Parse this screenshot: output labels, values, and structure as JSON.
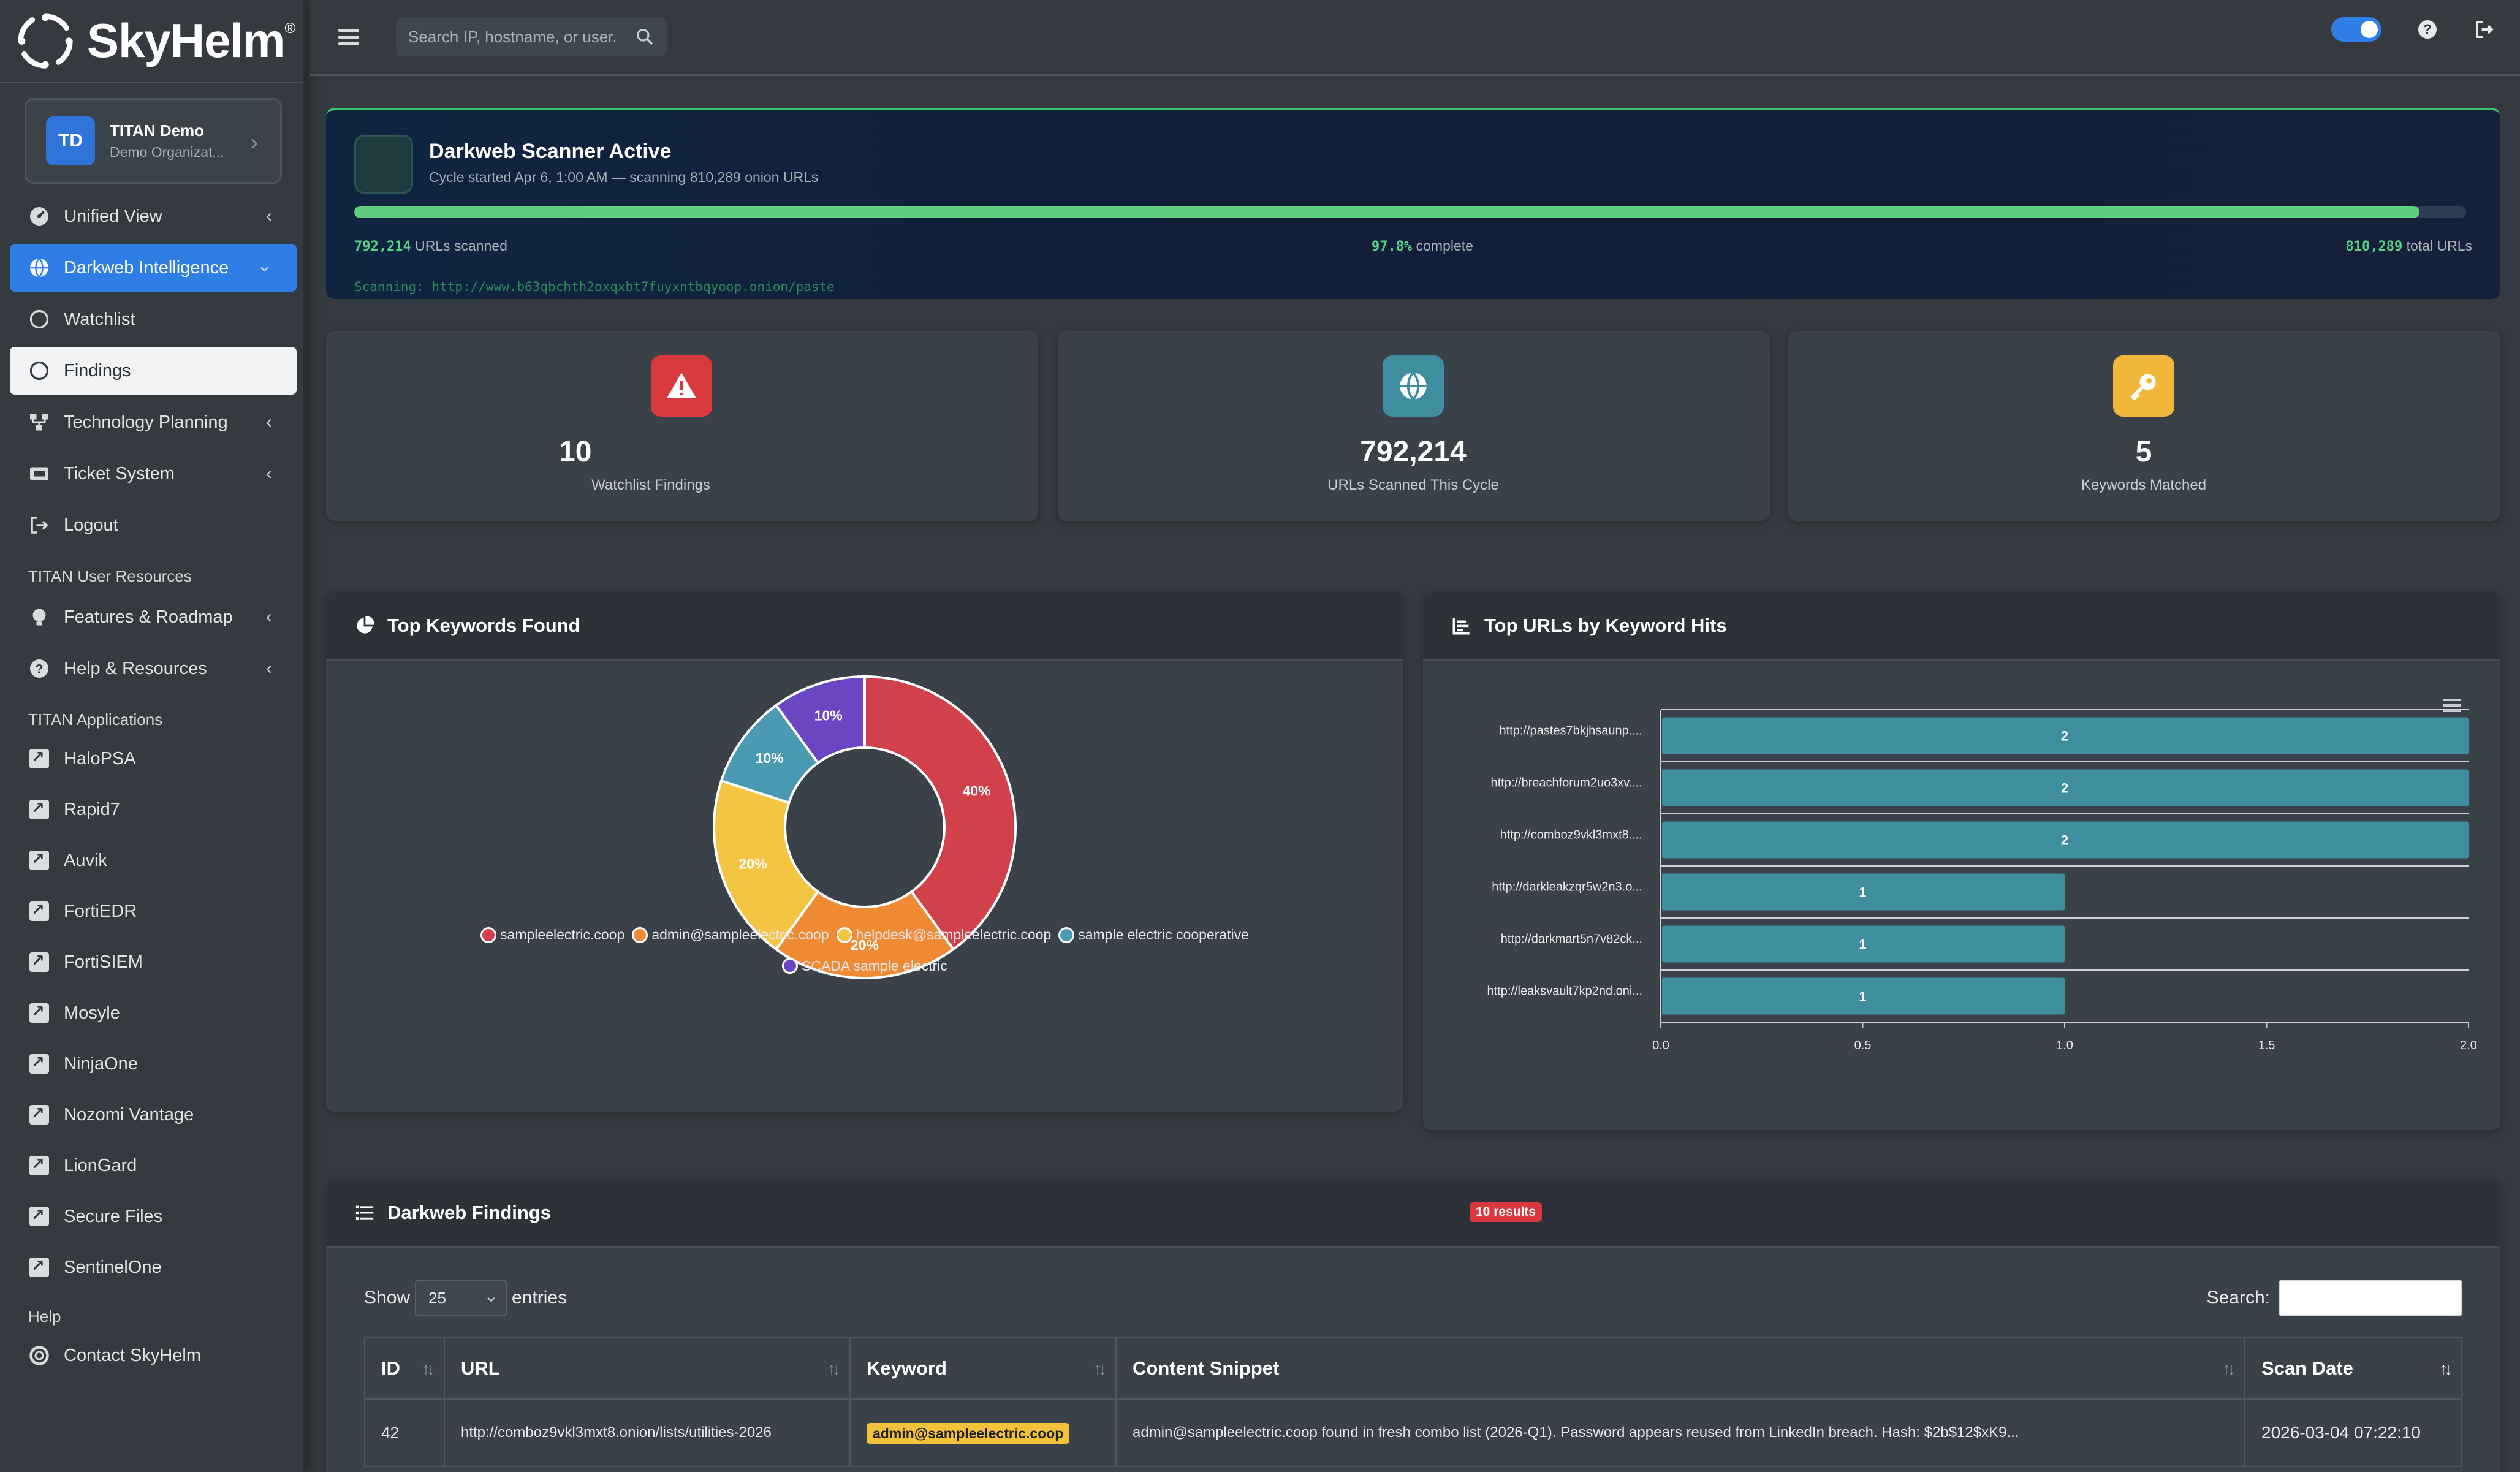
{
  "brand": {
    "name": "SkyHelm",
    "reg": "®"
  },
  "user": {
    "initials": "TD",
    "name": "TITAN Demo",
    "org": "Demo Organizat..."
  },
  "topbar": {
    "search_placeholder": "Search IP, hostname, or user."
  },
  "nav": {
    "items": [
      {
        "label": "Unified View",
        "icon": "dashboard-icon",
        "caret": true
      },
      {
        "label": "Darkweb Intelligence",
        "icon": "globe-icon",
        "caret": true,
        "state": "active"
      },
      {
        "label": "Watchlist",
        "icon": "circle-icon"
      },
      {
        "label": "Findings",
        "icon": "circle-icon",
        "state": "selected"
      },
      {
        "label": "Technology Planning",
        "icon": "hierarchy-icon",
        "caret": true
      },
      {
        "label": "Ticket System",
        "icon": "ticket-icon",
        "caret": true
      },
      {
        "label": "Logout",
        "icon": "logout-icon"
      }
    ],
    "resources_heading": "TITAN User Resources",
    "resources": [
      {
        "label": "Features & Roadmap",
        "icon": "lightbulb-icon"
      },
      {
        "label": "Help & Resources",
        "icon": "question-icon"
      }
    ],
    "apps_heading": "TITAN Applications",
    "apps": [
      "HaloPSA",
      "Rapid7",
      "Auvik",
      "FortiEDR",
      "FortiSIEM",
      "Mosyle",
      "NinjaOne",
      "Nozomi Vantage",
      "LionGard",
      "Secure Files",
      "SentinelOne"
    ],
    "help_heading": "Help",
    "help_items": [
      "Contact SkyHelm"
    ]
  },
  "scanner": {
    "title": "Darkweb Scanner Active",
    "subtitle": "Cycle started Apr 6, 1:00 AM — scanning 810,289 onion URLs",
    "progress": 0.978,
    "scanned_value": "792,214",
    "scanned_label": "URLs scanned",
    "percent_value": "97.8%",
    "percent_label": "complete",
    "total_value": "810,289",
    "total_label": "total URLs",
    "current_url": "Scanning: http://www.b63qbchth2oxqxbt7fuyxntbqyoop.onion/paste"
  },
  "stats": [
    {
      "value": "10",
      "label": "Watchlist Findings",
      "icon": "warning-icon",
      "color": "#d9383e"
    },
    {
      "value": "792,214",
      "label": "URLs Scanned This Cycle",
      "icon": "globe-icon",
      "color": "#3e8ea0"
    },
    {
      "value": "5",
      "label": "Keywords Matched",
      "icon": "key-icon",
      "color": "#f0b73a"
    }
  ],
  "keywords_panel": {
    "title": "Top Keywords Found"
  },
  "urls_panel": {
    "title": "Top URLs by Keyword Hits"
  },
  "chart_data": [
    {
      "type": "pie",
      "title": "Top Keywords Found",
      "categories": [
        "sampleelectric.coop",
        "admin@sampleelectric.coop",
        "helpdesk@sampleelectric.coop",
        "sample electric cooperative",
        "SCADA sample electric"
      ],
      "values": [
        40,
        20,
        20,
        10,
        10
      ],
      "labels": [
        "40%",
        "20%",
        "20%",
        "10%",
        "10%"
      ],
      "colors": [
        "#d0414b",
        "#ef8a35",
        "#f4c443",
        "#4a9bb1",
        "#6a46c3"
      ]
    },
    {
      "type": "bar",
      "orientation": "horizontal",
      "title": "Top URLs by Keyword Hits",
      "categories": [
        "http://pastes7bkjhsaunp....",
        "http://breachforum2uo3xv....",
        "http://comboz9vkl3mxt8....",
        "http://darkleakzqr5w2n3.o...",
        "http://darkmart5n7v82ck...",
        "http://leaksvault7kp2nd.oni..."
      ],
      "values": [
        2,
        2,
        2,
        1,
        1,
        1
      ],
      "xlim": [
        0,
        2
      ],
      "xticks": [
        "0.0",
        "0.5",
        "1.0",
        "1.5",
        "2.0"
      ],
      "color": "#3e8ea0"
    }
  ],
  "findings": {
    "title": "Darkweb Findings",
    "badge": "10 results",
    "show_label": "Show",
    "entries_label": "entries",
    "page_size": "25",
    "search_label": "Search:",
    "columns": [
      "ID",
      "URL",
      "Keyword",
      "Content Snippet",
      "Scan Date"
    ],
    "rows": [
      {
        "id": "42",
        "url": "http://comboz9vkl3mxt8.onion/lists/utilities-2026",
        "keyword": "admin@sampleelectric.coop",
        "snippet": "admin@sampleelectric.coop found in fresh combo list (2026-Q1). Password appears reused from LinkedIn breach. Hash: $2b$12$xK9...",
        "date": "2026-03-04 07:22:10"
      }
    ]
  }
}
